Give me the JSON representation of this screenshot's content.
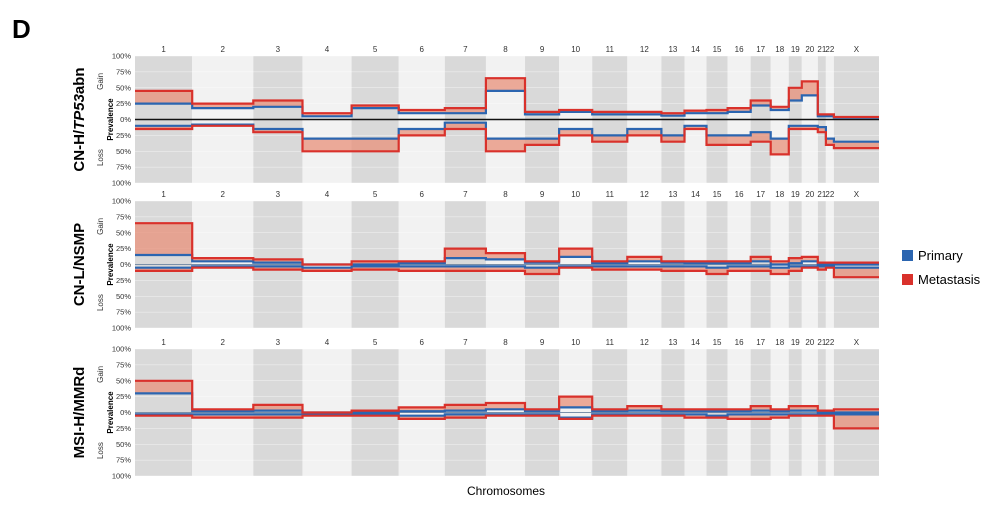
{
  "figure": {
    "panel_letter": "D",
    "x_axis_label": "Chromosomes",
    "legend": [
      {
        "label": "Primary",
        "color": "#2b65b0"
      },
      {
        "label": "Metastasis",
        "color": "#d9312b"
      }
    ]
  },
  "chart_data": [
    {
      "type": "area",
      "group": "CN-H/TP53abn",
      "group_prefix": "CN-H/",
      "group_italic": "TP53",
      "group_suffix": "abn",
      "gain_label": "Gain",
      "loss_label": "Loss",
      "ylabel": "Prevalence",
      "ylim": [
        -100,
        100
      ],
      "ytick_labels": [
        "100%",
        "75%",
        "50%",
        "25%",
        "0%",
        "25%",
        "50%",
        "75%",
        "100%"
      ],
      "chromosomes": [
        "1",
        "2",
        "3",
        "4",
        "5",
        "6",
        "7",
        "8",
        "9",
        "10",
        "11",
        "12",
        "13",
        "14",
        "15",
        "16",
        "17",
        "18",
        "19",
        "20",
        "21",
        "22",
        "X"
      ],
      "series": [
        {
          "name": "Primary",
          "gain": [
            25,
            18,
            20,
            5,
            18,
            10,
            10,
            45,
            8,
            12,
            8,
            8,
            6,
            10,
            10,
            12,
            22,
            15,
            30,
            38,
            5,
            5,
            3
          ],
          "loss": [
            -10,
            -8,
            -15,
            -30,
            -30,
            -15,
            -5,
            -30,
            -30,
            -15,
            -25,
            -15,
            -25,
            -10,
            -25,
            -25,
            -20,
            -30,
            -10,
            -10,
            -12,
            -30,
            -35
          ]
        },
        {
          "name": "Metastasis",
          "gain": [
            45,
            25,
            30,
            10,
            22,
            15,
            18,
            65,
            12,
            15,
            12,
            12,
            10,
            14,
            15,
            18,
            30,
            20,
            50,
            60,
            8,
            8,
            4
          ],
          "loss": [
            -15,
            -10,
            -20,
            -50,
            -50,
            -25,
            -15,
            -50,
            -40,
            -25,
            -35,
            -25,
            -35,
            -15,
            -40,
            -40,
            -35,
            -55,
            -15,
            -15,
            -20,
            -40,
            -45
          ]
        }
      ]
    },
    {
      "type": "area",
      "group": "CN-L/NSMP",
      "group_prefix": "CN-L/NSMP",
      "group_italic": "",
      "group_suffix": "",
      "gain_label": "Gain",
      "loss_label": "Loss",
      "ylabel": "Prevalence",
      "ylim": [
        -100,
        100
      ],
      "ytick_labels": [
        "100%",
        "75%",
        "50%",
        "25%",
        "0%",
        "25%",
        "50%",
        "75%",
        "100%"
      ],
      "chromosomes": [
        "1",
        "2",
        "3",
        "4",
        "5",
        "6",
        "7",
        "8",
        "9",
        "10",
        "11",
        "12",
        "13",
        "14",
        "15",
        "16",
        "17",
        "18",
        "19",
        "20",
        "21",
        "22",
        "X"
      ],
      "series": [
        {
          "name": "Primary",
          "gain": [
            15,
            5,
            3,
            0,
            0,
            2,
            10,
            8,
            3,
            12,
            2,
            5,
            3,
            2,
            2,
            2,
            5,
            0,
            2,
            5,
            0,
            0,
            0
          ],
          "loss": [
            -5,
            -3,
            -3,
            -5,
            -3,
            -3,
            -3,
            -3,
            -5,
            -3,
            -3,
            -3,
            -3,
            -3,
            -5,
            -3,
            -3,
            -5,
            -3,
            -3,
            -3,
            -3,
            -5
          ]
        },
        {
          "name": "Metastasis",
          "gain": [
            65,
            10,
            8,
            0,
            5,
            5,
            25,
            18,
            5,
            25,
            5,
            12,
            5,
            5,
            5,
            5,
            12,
            5,
            10,
            12,
            3,
            3,
            3
          ],
          "loss": [
            -10,
            -5,
            -8,
            -10,
            -8,
            -10,
            -10,
            -10,
            -15,
            -5,
            -8,
            -8,
            -10,
            -10,
            -15,
            -10,
            -10,
            -15,
            -10,
            -5,
            -8,
            -5,
            -20
          ]
        }
      ]
    },
    {
      "type": "area",
      "group": "MSI-H/MMRd",
      "group_prefix": "MSI-H/MMRd",
      "group_italic": "",
      "group_suffix": "",
      "gain_label": "Gain",
      "loss_label": "Loss",
      "ylabel": "Prevalence",
      "ylim": [
        -100,
        100
      ],
      "ytick_labels": [
        "100%",
        "75%",
        "50%",
        "25%",
        "0%",
        "25%",
        "50%",
        "75%",
        "100%"
      ],
      "chromosomes": [
        "1",
        "2",
        "3",
        "4",
        "5",
        "6",
        "7",
        "8",
        "9",
        "10",
        "11",
        "12",
        "13",
        "14",
        "15",
        "16",
        "17",
        "18",
        "19",
        "20",
        "21",
        "22",
        "X"
      ],
      "series": [
        {
          "name": "Primary",
          "gain": [
            30,
            2,
            3,
            0,
            0,
            2,
            3,
            5,
            2,
            8,
            2,
            3,
            2,
            2,
            2,
            2,
            3,
            2,
            3,
            3,
            0,
            0,
            0
          ],
          "loss": [
            -3,
            -3,
            -3,
            -3,
            -3,
            -5,
            -3,
            -3,
            -3,
            -8,
            -3,
            -3,
            -3,
            -3,
            -5,
            -3,
            -3,
            -3,
            -3,
            -3,
            -3,
            -3,
            -3
          ]
        },
        {
          "name": "Metastasis",
          "gain": [
            50,
            5,
            12,
            0,
            3,
            8,
            12,
            15,
            5,
            25,
            5,
            10,
            5,
            5,
            5,
            5,
            10,
            5,
            10,
            10,
            3,
            3,
            5
          ],
          "loss": [
            -5,
            -8,
            -8,
            -5,
            -5,
            -10,
            -8,
            -5,
            -5,
            -10,
            -5,
            -5,
            -5,
            -8,
            -8,
            -10,
            -10,
            -8,
            -5,
            -5,
            -5,
            -5,
            -25
          ]
        }
      ]
    }
  ]
}
